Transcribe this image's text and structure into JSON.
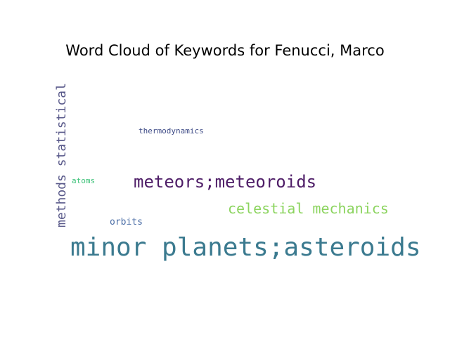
{
  "title": "Word Cloud of Keywords for Fenucci, Marco",
  "words": [
    {
      "text": "minor planets;asteroids",
      "color": "#3b7a8f"
    },
    {
      "text": "meteors;meteoroids",
      "color": "#4e1d67"
    },
    {
      "text": "celestial mechanics",
      "color": "#8cd45f"
    },
    {
      "text": "methods statistical",
      "color": "#59598a"
    },
    {
      "text": "orbits",
      "color": "#4a6da6"
    },
    {
      "text": "thermodynamics",
      "color": "#3d4a86"
    },
    {
      "text": "atoms",
      "color": "#3ec27a"
    }
  ]
}
